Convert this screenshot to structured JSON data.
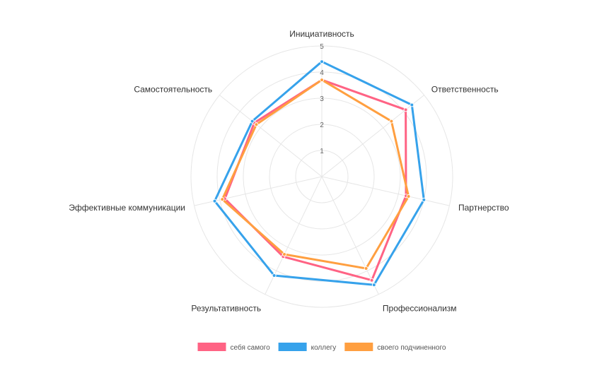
{
  "chart_data": {
    "type": "radar",
    "categories": [
      "Инициативность",
      "Ответственность",
      "Партнерство",
      "Профессионализм",
      "Результативность",
      "Эффективные коммуникации",
      "Самостоятельность"
    ],
    "series": [
      {
        "name": "себя самого",
        "color": "#ff6384",
        "values": [
          3.7,
          4.1,
          3.3,
          4.4,
          3.4,
          3.8,
          3.3
        ]
      },
      {
        "name": "коллегу",
        "color": "#36a2eb",
        "values": [
          4.4,
          4.4,
          4.0,
          4.6,
          4.2,
          4.2,
          3.4
        ]
      },
      {
        "name": "своего подчиненного",
        "color": "#ff9f40",
        "values": [
          3.7,
          3.4,
          3.4,
          3.9,
          3.3,
          3.9,
          3.2
        ]
      }
    ],
    "r_min": 0,
    "r_max": 5,
    "ticks": [
      "1",
      "2",
      "3",
      "4",
      "5"
    ],
    "legend_position": "bottom",
    "grid": true
  }
}
